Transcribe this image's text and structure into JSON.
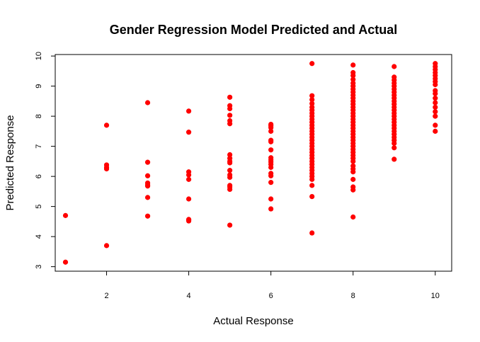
{
  "chart_data": {
    "type": "scatter",
    "title": "Gender Regression Model Predicted and Actual",
    "xlabel": "Actual Response",
    "ylabel": "Predicted Response",
    "xlim": [
      0.75,
      10.4
    ],
    "ylim": [
      2.85,
      10.05
    ],
    "xticks": [
      2,
      4,
      6,
      8,
      10
    ],
    "yticks": [
      3,
      4,
      5,
      6,
      7,
      8,
      9,
      10
    ],
    "point_color": "#ff0000",
    "grid": false,
    "legend": "none",
    "series": [
      {
        "points": [
          [
            1,
            4.7
          ],
          [
            1,
            3.15
          ],
          [
            2,
            7.7
          ],
          [
            2,
            6.38
          ],
          [
            2,
            6.3
          ],
          [
            2,
            6.25
          ],
          [
            2,
            3.7
          ],
          [
            3,
            8.45
          ],
          [
            3,
            6.47
          ],
          [
            3,
            6.02
          ],
          [
            3,
            5.78
          ],
          [
            3,
            5.72
          ],
          [
            3,
            5.68
          ],
          [
            3,
            5.3
          ],
          [
            3,
            4.68
          ],
          [
            4,
            8.17
          ],
          [
            4,
            7.47
          ],
          [
            4,
            6.15
          ],
          [
            4,
            6.05
          ],
          [
            4,
            5.9
          ],
          [
            4,
            5.25
          ],
          [
            4,
            4.57
          ],
          [
            4,
            4.55
          ],
          [
            4,
            4.52
          ],
          [
            5,
            8.63
          ],
          [
            5,
            8.35
          ],
          [
            5,
            8.25
          ],
          [
            5,
            8.03
          ],
          [
            5,
            7.85
          ],
          [
            5,
            7.75
          ],
          [
            5,
            6.72
          ],
          [
            5,
            6.6
          ],
          [
            5,
            6.5
          ],
          [
            5,
            6.45
          ],
          [
            5,
            6.2
          ],
          [
            5,
            6.05
          ],
          [
            5,
            5.97
          ],
          [
            5,
            5.7
          ],
          [
            5,
            5.65
          ],
          [
            5,
            5.57
          ],
          [
            5,
            4.38
          ],
          [
            6,
            7.73
          ],
          [
            6,
            7.68
          ],
          [
            6,
            7.62
          ],
          [
            6,
            7.5
          ],
          [
            6,
            7.2
          ],
          [
            6,
            7.15
          ],
          [
            6,
            6.88
          ],
          [
            6,
            6.62
          ],
          [
            6,
            6.55
          ],
          [
            6,
            6.48
          ],
          [
            6,
            6.4
          ],
          [
            6,
            6.3
          ],
          [
            6,
            6.1
          ],
          [
            6,
            6.02
          ],
          [
            6,
            5.8
          ],
          [
            6,
            5.25
          ],
          [
            6,
            4.92
          ],
          [
            7,
            9.75
          ],
          [
            7,
            8.68
          ],
          [
            7,
            8.55
          ],
          [
            7,
            8.42
          ],
          [
            7,
            8.3
          ],
          [
            7,
            8.2
          ],
          [
            7,
            8.1
          ],
          [
            7,
            8.0
          ],
          [
            7,
            7.9
          ],
          [
            7,
            7.8
          ],
          [
            7,
            7.7
          ],
          [
            7,
            7.6
          ],
          [
            7,
            7.5
          ],
          [
            7,
            7.4
          ],
          [
            7,
            7.3
          ],
          [
            7,
            7.2
          ],
          [
            7,
            7.1
          ],
          [
            7,
            7.0
          ],
          [
            7,
            6.9
          ],
          [
            7,
            6.8
          ],
          [
            7,
            6.7
          ],
          [
            7,
            6.6
          ],
          [
            7,
            6.5
          ],
          [
            7,
            6.4
          ],
          [
            7,
            6.3
          ],
          [
            7,
            6.2
          ],
          [
            7,
            6.1
          ],
          [
            7,
            6.0
          ],
          [
            7,
            5.9
          ],
          [
            7,
            5.7
          ],
          [
            7,
            5.33
          ],
          [
            7,
            4.12
          ],
          [
            8,
            9.7
          ],
          [
            8,
            9.45
          ],
          [
            8,
            9.35
          ],
          [
            8,
            9.22
          ],
          [
            8,
            9.1
          ],
          [
            8,
            9.0
          ],
          [
            8,
            8.9
          ],
          [
            8,
            8.8
          ],
          [
            8,
            8.7
          ],
          [
            8,
            8.6
          ],
          [
            8,
            8.5
          ],
          [
            8,
            8.4
          ],
          [
            8,
            8.3
          ],
          [
            8,
            8.2
          ],
          [
            8,
            8.1
          ],
          [
            8,
            8.0
          ],
          [
            8,
            7.9
          ],
          [
            8,
            7.8
          ],
          [
            8,
            7.7
          ],
          [
            8,
            7.6
          ],
          [
            8,
            7.5
          ],
          [
            8,
            7.4
          ],
          [
            8,
            7.3
          ],
          [
            8,
            7.2
          ],
          [
            8,
            7.1
          ],
          [
            8,
            7.0
          ],
          [
            8,
            6.9
          ],
          [
            8,
            6.8
          ],
          [
            8,
            6.7
          ],
          [
            8,
            6.6
          ],
          [
            8,
            6.5
          ],
          [
            8,
            6.35
          ],
          [
            8,
            6.25
          ],
          [
            8,
            6.15
          ],
          [
            8,
            5.9
          ],
          [
            8,
            5.65
          ],
          [
            8,
            5.55
          ],
          [
            8,
            4.65
          ],
          [
            9,
            9.65
          ],
          [
            9,
            9.3
          ],
          [
            9,
            9.2
          ],
          [
            9,
            9.1
          ],
          [
            9,
            9.0
          ],
          [
            9,
            8.9
          ],
          [
            9,
            8.8
          ],
          [
            9,
            8.7
          ],
          [
            9,
            8.6
          ],
          [
            9,
            8.5
          ],
          [
            9,
            8.4
          ],
          [
            9,
            8.3
          ],
          [
            9,
            8.2
          ],
          [
            9,
            8.1
          ],
          [
            9,
            8.0
          ],
          [
            9,
            7.9
          ],
          [
            9,
            7.8
          ],
          [
            9,
            7.7
          ],
          [
            9,
            7.6
          ],
          [
            9,
            7.5
          ],
          [
            9,
            7.4
          ],
          [
            9,
            7.3
          ],
          [
            9,
            7.2
          ],
          [
            9,
            7.1
          ],
          [
            9,
            6.95
          ],
          [
            9,
            6.57
          ],
          [
            10,
            9.75
          ],
          [
            10,
            9.65
          ],
          [
            10,
            9.55
          ],
          [
            10,
            9.45
          ],
          [
            10,
            9.35
          ],
          [
            10,
            9.25
          ],
          [
            10,
            9.15
          ],
          [
            10,
            9.05
          ],
          [
            10,
            8.85
          ],
          [
            10,
            8.75
          ],
          [
            10,
            8.6
          ],
          [
            10,
            8.45
          ],
          [
            10,
            8.3
          ],
          [
            10,
            8.15
          ],
          [
            10,
            8.0
          ],
          [
            10,
            7.7
          ],
          [
            10,
            7.5
          ]
        ]
      }
    ]
  }
}
